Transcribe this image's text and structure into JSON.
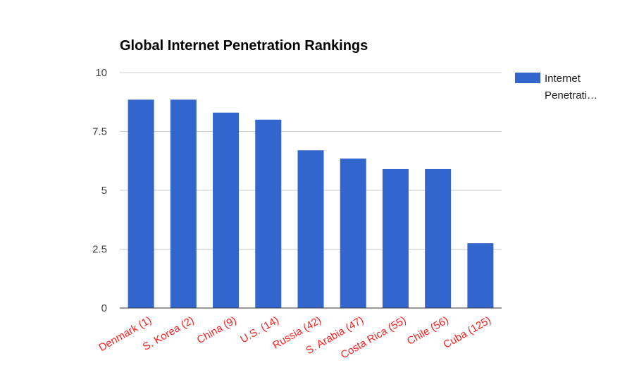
{
  "colors": {
    "bar": "#3366cc",
    "category_label": "#ff2020",
    "grid": "#cccccc",
    "axis": "#333333"
  },
  "chart_data": {
    "type": "bar",
    "title": "Global Internet Penetration Rankings",
    "xlabel": "",
    "ylabel": "",
    "categories": [
      "Denmark (1)",
      "S. Korea (2)",
      "China (9)",
      "U.S. (14)",
      "Russia (42)",
      "S. Arabia (47)",
      "Costa Rica (55)",
      "Chile (56)",
      "Cuba (125)"
    ],
    "series": [
      {
        "name": "Internet Penetrati…",
        "values": [
          8.85,
          8.85,
          8.3,
          8.0,
          6.7,
          6.35,
          5.9,
          5.9,
          2.75
        ]
      }
    ],
    "ylim": [
      0,
      10
    ],
    "yticks": [
      0,
      2.5,
      5,
      7.5,
      10
    ],
    "ytick_labels": [
      "0",
      "2.5",
      "5",
      "7.5",
      "10"
    ],
    "grid": true,
    "legend_position": "right",
    "legend_label_lines": [
      "Internet",
      "Penetrati…"
    ]
  }
}
